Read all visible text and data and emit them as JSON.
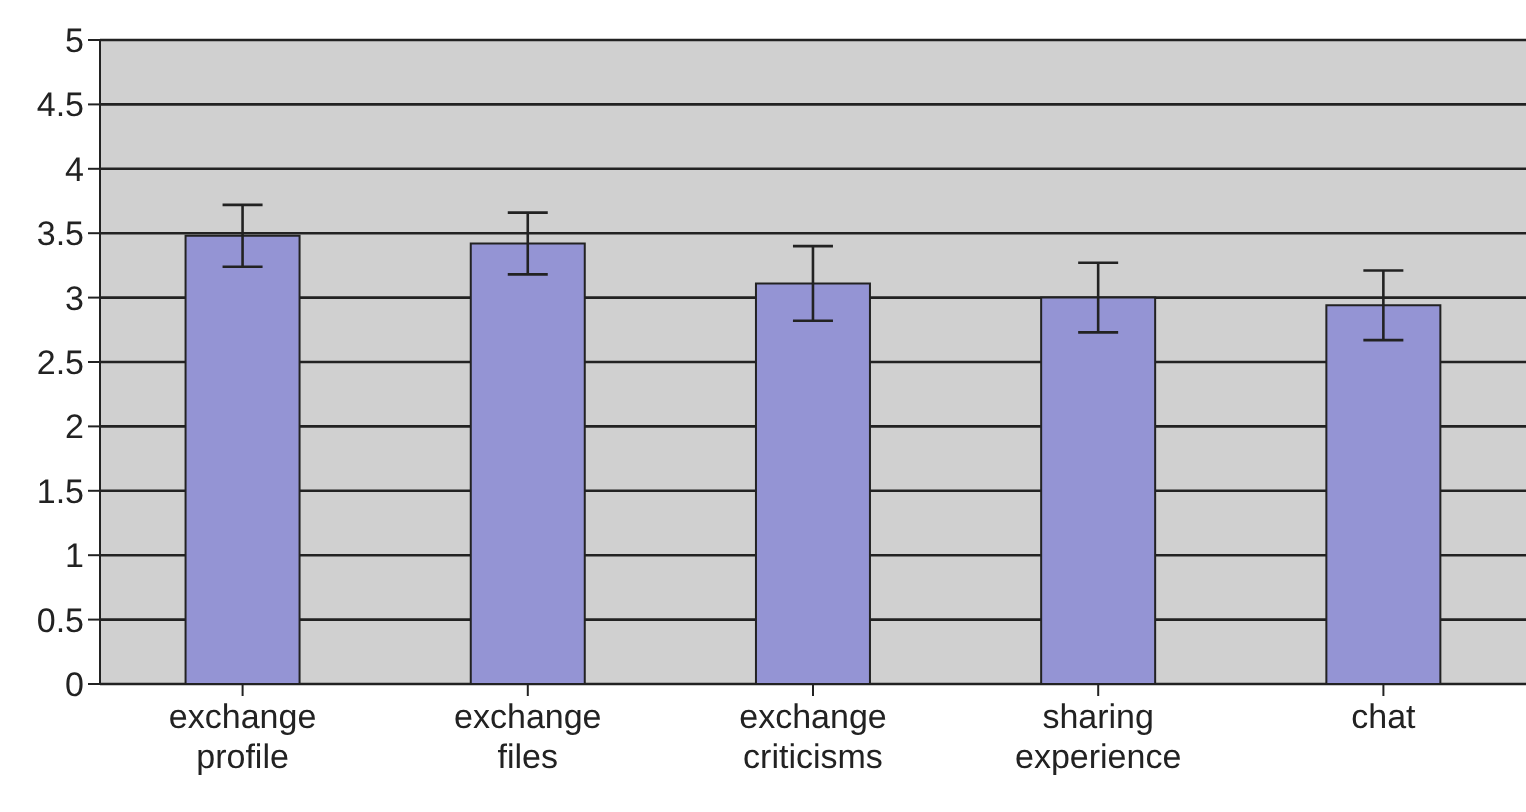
{
  "chart_data": {
    "type": "bar",
    "categories": [
      "exchange profile",
      "exchange files",
      "exchange criticisms",
      "sharing experience",
      "chat"
    ],
    "values": [
      3.48,
      3.42,
      3.11,
      3.0,
      2.94
    ],
    "errors": [
      0.24,
      0.24,
      0.29,
      0.27,
      0.27
    ],
    "color": "#9494d4",
    "ylim": [
      0,
      5
    ],
    "yticks": [
      0,
      0.5,
      1,
      1.5,
      2,
      2.5,
      3,
      3.5,
      4,
      4.5,
      5
    ],
    "grid": "y"
  }
}
